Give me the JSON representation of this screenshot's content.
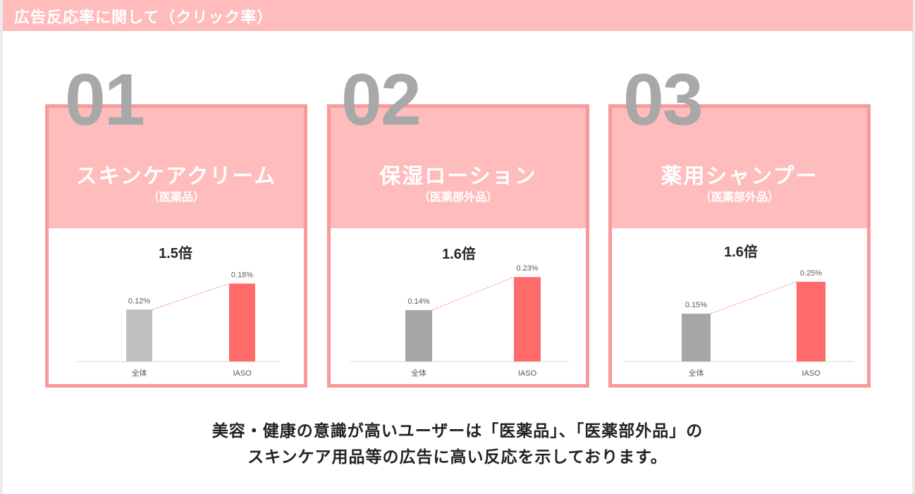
{
  "header": {
    "title": "広告反応率に関して（クリック率）"
  },
  "cards": [
    {
      "number": "01",
      "title": "スキンケアクリーム",
      "subtitle": "（医薬品）"
    },
    {
      "number": "02",
      "title": "保湿ローション",
      "subtitle": "（医薬部外品）"
    },
    {
      "number": "03",
      "title": "薬用シャンプー",
      "subtitle": "（医薬部外品）"
    }
  ],
  "summary": {
    "line1": "美容・健康の意識が高いユーザーは「医薬品」、「医薬部外品」の",
    "line2": "スキンケア用品等の広告に高い反応を示しております。"
  },
  "colors": {
    "header_band": "#ffbcbc",
    "card_border": "#f79a9a",
    "bar_overall_1": "#bfbfbf",
    "bar_overall": "#a6a6a6",
    "bar_iaso": "#ff6b6b"
  },
  "chart_data": [
    {
      "type": "bar",
      "categories": [
        "全体",
        "IASO"
      ],
      "values": [
        0.12,
        0.18
      ],
      "value_labels": [
        "0.12%",
        "0.18%"
      ],
      "annotation": "1.5倍",
      "ylim": [
        0,
        0.28
      ],
      "grid": false,
      "bar_colors": [
        "#bfbfbf",
        "#ff6b6b"
      ]
    },
    {
      "type": "bar",
      "categories": [
        "全体",
        "IASO"
      ],
      "values": [
        0.14,
        0.23
      ],
      "value_labels": [
        "0.14%",
        "0.23%"
      ],
      "annotation": "1.6倍",
      "ylim": [
        0,
        0.33
      ],
      "grid": false,
      "bar_colors": [
        "#a6a6a6",
        "#ff6b6b"
      ]
    },
    {
      "type": "bar",
      "categories": [
        "全体",
        "IASO"
      ],
      "values": [
        0.15,
        0.25
      ],
      "value_labels": [
        "0.15%",
        "0.25%"
      ],
      "annotation": "1.6倍",
      "ylim": [
        0,
        0.38
      ],
      "grid": false,
      "bar_colors": [
        "#a6a6a6",
        "#ff6b6b"
      ]
    }
  ]
}
